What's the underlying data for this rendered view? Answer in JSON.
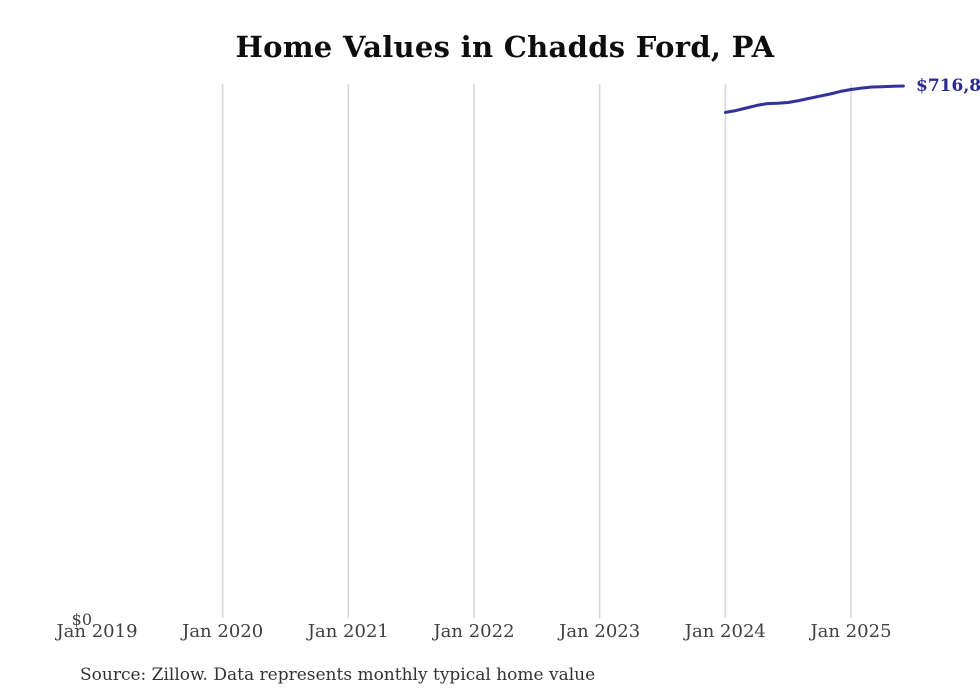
{
  "chart": {
    "title": "Home Values in Chadds Ford, PA",
    "latest_value_label": "$716,8",
    "y_axis": {
      "zero_label": "$0"
    },
    "source_note": "Source: Zillow. Data represents monthly typical home value",
    "colors": {
      "line": "#32329b",
      "value_label": "#2b2b8f",
      "gridline": "#d6d6d6",
      "axis_text": "#404040",
      "title_text": "#0d0d0d",
      "source_text": "#333333"
    }
  },
  "chart_data": {
    "type": "line",
    "title": "Home Values in Chadds Ford, PA",
    "xlabel": "",
    "ylabel": "",
    "ylim": [
      0,
      716800
    ],
    "grid": "vertical-only",
    "legend_position": "none",
    "x_ticks": [
      {
        "label": "Jan 2019",
        "year": 2019,
        "gridline": false
      },
      {
        "label": "Jan 2020",
        "year": 2020,
        "gridline": true
      },
      {
        "label": "Jan 2021",
        "year": 2021,
        "gridline": true
      },
      {
        "label": "Jan 2022",
        "year": 2022,
        "gridline": true
      },
      {
        "label": "Jan 2023",
        "year": 2023,
        "gridline": true
      },
      {
        "label": "Jan 2024",
        "year": 2024,
        "gridline": true
      },
      {
        "label": "Jan 2025",
        "year": 2025,
        "gridline": true
      }
    ],
    "end_label": "$716,8",
    "series": [
      {
        "name": "Monthly typical home value",
        "points": [
          {
            "month": "2024-01",
            "value": 681000
          },
          {
            "month": "2024-02",
            "value": 683500
          },
          {
            "month": "2024-03",
            "value": 687000
          },
          {
            "month": "2024-04",
            "value": 690500
          },
          {
            "month": "2024-05",
            "value": 693000
          },
          {
            "month": "2024-06",
            "value": 693500
          },
          {
            "month": "2024-07",
            "value": 694500
          },
          {
            "month": "2024-08",
            "value": 697000
          },
          {
            "month": "2024-09",
            "value": 700000
          },
          {
            "month": "2024-10",
            "value": 703000
          },
          {
            "month": "2024-11",
            "value": 706000
          },
          {
            "month": "2024-12",
            "value": 709500
          },
          {
            "month": "2025-01",
            "value": 712000
          },
          {
            "month": "2025-02",
            "value": 714000
          },
          {
            "month": "2025-03",
            "value": 715500
          },
          {
            "month": "2025-04",
            "value": 715800
          },
          {
            "month": "2025-05",
            "value": 716400
          },
          {
            "month": "2025-06",
            "value": 716800
          }
        ]
      }
    ]
  }
}
